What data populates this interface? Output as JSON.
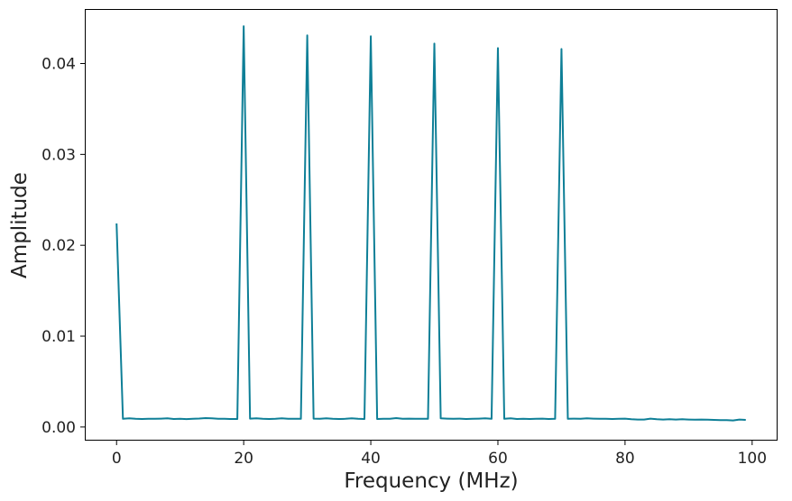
{
  "chart_data": {
    "type": "line",
    "title": "",
    "xlabel": "Frequency (MHz)",
    "ylabel": "Amplitude",
    "xlim": [
      -5,
      104
    ],
    "ylim": [
      -0.0015,
      0.046
    ],
    "grid": false,
    "xticks": [
      0,
      20,
      40,
      60,
      80,
      100
    ],
    "xtick_labels": [
      "0",
      "20",
      "40",
      "60",
      "80",
      "100"
    ],
    "yticks": [
      0.0,
      0.01,
      0.02,
      0.03,
      0.04
    ],
    "ytick_labels": [
      "0.00",
      "0.01",
      "0.02",
      "0.03",
      "0.04"
    ],
    "series": [
      {
        "color": "#0e7f97",
        "x": [
          0,
          1,
          2,
          3,
          4,
          5,
          6,
          7,
          8,
          9,
          10,
          11,
          12,
          13,
          14,
          15,
          16,
          17,
          18,
          19,
          20,
          21,
          22,
          23,
          24,
          25,
          26,
          27,
          28,
          29,
          30,
          31,
          32,
          33,
          34,
          35,
          36,
          37,
          38,
          39,
          40,
          41,
          42,
          43,
          44,
          45,
          46,
          47,
          48,
          49,
          50,
          51,
          52,
          53,
          54,
          55,
          56,
          57,
          58,
          59,
          60,
          61,
          62,
          63,
          64,
          65,
          66,
          67,
          68,
          69,
          70,
          71,
          72,
          73,
          74,
          75,
          76,
          77,
          78,
          79,
          80,
          81,
          82,
          83,
          84,
          85,
          86,
          87,
          88,
          89,
          90,
          91,
          92,
          93,
          94,
          95,
          96,
          97,
          98,
          99
        ],
        "y": [
          0.0224,
          0.0009,
          0.00095,
          0.0009,
          0.00088,
          0.0009,
          0.0009,
          0.00092,
          0.00095,
          0.00088,
          0.0009,
          0.00087,
          0.0009,
          0.00093,
          0.00098,
          0.00095,
          0.0009,
          0.0009,
          0.00088,
          0.00088,
          0.0441,
          0.00092,
          0.00095,
          0.0009,
          0.00088,
          0.0009,
          0.00095,
          0.0009,
          0.0009,
          0.0009,
          0.0431,
          0.00092,
          0.0009,
          0.00095,
          0.0009,
          0.00088,
          0.0009,
          0.00095,
          0.0009,
          0.00088,
          0.043,
          0.00088,
          0.0009,
          0.0009,
          0.00098,
          0.0009,
          0.00092,
          0.0009,
          0.0009,
          0.0009,
          0.0422,
          0.00095,
          0.00092,
          0.0009,
          0.00092,
          0.00088,
          0.0009,
          0.00092,
          0.00095,
          0.0009,
          0.0417,
          0.0009,
          0.00095,
          0.00088,
          0.0009,
          0.00088,
          0.0009,
          0.00092,
          0.00088,
          0.0009,
          0.0416,
          0.0009,
          0.00092,
          0.0009,
          0.00095,
          0.00092,
          0.0009,
          0.0009,
          0.00088,
          0.0009,
          0.00092,
          0.00085,
          0.00082,
          0.00082,
          0.00092,
          0.00085,
          0.00082,
          0.00085,
          0.00082,
          0.00085,
          0.00082,
          0.0008,
          0.00082,
          0.0008,
          0.00078,
          0.00075,
          0.00075,
          0.00072,
          0.00082,
          0.00078
        ]
      }
    ]
  }
}
